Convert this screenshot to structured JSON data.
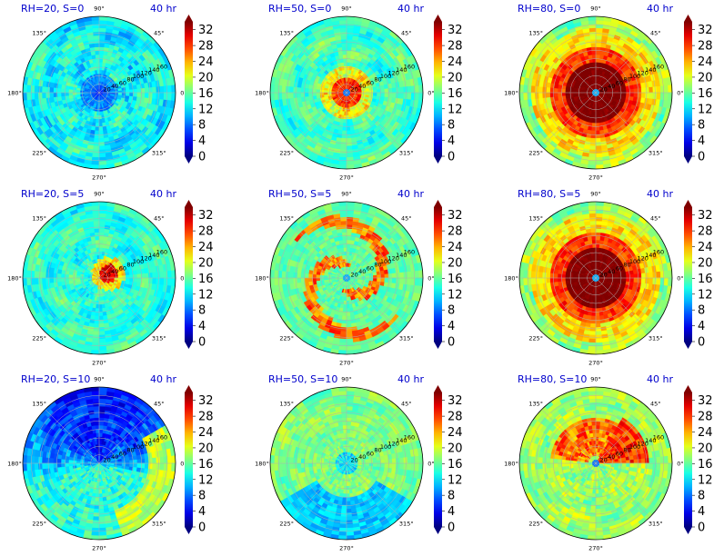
{
  "figure": {
    "time_label": "40 hr",
    "angle_labels": [
      "90°",
      "45°",
      "0°",
      "315°",
      "270°",
      "225°",
      "180°",
      "135°"
    ],
    "radial_labels": [
      "20",
      "40",
      "60",
      "80",
      "100",
      "120",
      "140",
      "160"
    ],
    "colorbar_ticks": [
      "0",
      "4",
      "8",
      "12",
      "16",
      "20",
      "24",
      "28",
      "32"
    ]
  },
  "chart_data": [
    {
      "type": "heatmap",
      "projection": "polar",
      "title": "RH=20, S=0",
      "time": "40 hr",
      "clim": [
        0,
        34
      ],
      "regime": "weak-center",
      "rmax": 180,
      "radial_ticks": [
        20,
        40,
        60,
        80,
        100,
        120,
        140,
        160
      ]
    },
    {
      "type": "heatmap",
      "projection": "polar",
      "title": "RH=50, S=0",
      "time": "40 hr",
      "clim": [
        0,
        34
      ],
      "regime": "eyewall-ring",
      "rmax": 180,
      "radial_ticks": [
        20,
        40,
        60,
        80,
        100,
        120,
        140,
        160
      ]
    },
    {
      "type": "heatmap",
      "projection": "polar",
      "title": "RH=80, S=0",
      "time": "40 hr",
      "clim": [
        0,
        34
      ],
      "regime": "strong-vortex",
      "rmax": 180,
      "radial_ticks": [
        20,
        40,
        60,
        80,
        100,
        120,
        140,
        160
      ]
    },
    {
      "type": "heatmap",
      "projection": "polar",
      "title": "RH=20, S=5",
      "time": "40 hr",
      "clim": [
        0,
        34
      ],
      "regime": "small-asymmetric-core",
      "rmax": 180,
      "radial_ticks": [
        20,
        40,
        60,
        80,
        100,
        120,
        140,
        160
      ]
    },
    {
      "type": "heatmap",
      "projection": "polar",
      "title": "RH=50, S=5",
      "time": "40 hr",
      "clim": [
        0,
        34
      ],
      "regime": "spiral-bands",
      "rmax": 180,
      "radial_ticks": [
        20,
        40,
        60,
        80,
        100,
        120,
        140,
        160
      ]
    },
    {
      "type": "heatmap",
      "projection": "polar",
      "title": "RH=80, S=5",
      "time": "40 hr",
      "clim": [
        0,
        34
      ],
      "regime": "strong-vortex",
      "rmax": 180,
      "radial_ticks": [
        20,
        40,
        60,
        80,
        100,
        120,
        140,
        160
      ]
    },
    {
      "type": "heatmap",
      "projection": "polar",
      "title": "RH=20, S=10",
      "time": "40 hr",
      "clim": [
        0,
        34
      ],
      "regime": "dry-north",
      "rmax": 180,
      "radial_ticks": [
        20,
        40,
        60,
        80,
        100,
        120,
        140,
        160
      ]
    },
    {
      "type": "heatmap",
      "projection": "polar",
      "title": "RH=50, S=10",
      "time": "40 hr",
      "clim": [
        0,
        34
      ],
      "regime": "weak-disorganized",
      "rmax": 180,
      "radial_ticks": [
        20,
        40,
        60,
        80,
        100,
        120,
        140,
        160
      ]
    },
    {
      "type": "heatmap",
      "projection": "polar",
      "title": "RH=80, S=10",
      "time": "40 hr",
      "clim": [
        0,
        34
      ],
      "regime": "sheared-north",
      "rmax": 180,
      "radial_ticks": [
        20,
        40,
        60,
        80,
        100,
        120,
        140,
        160
      ]
    }
  ]
}
